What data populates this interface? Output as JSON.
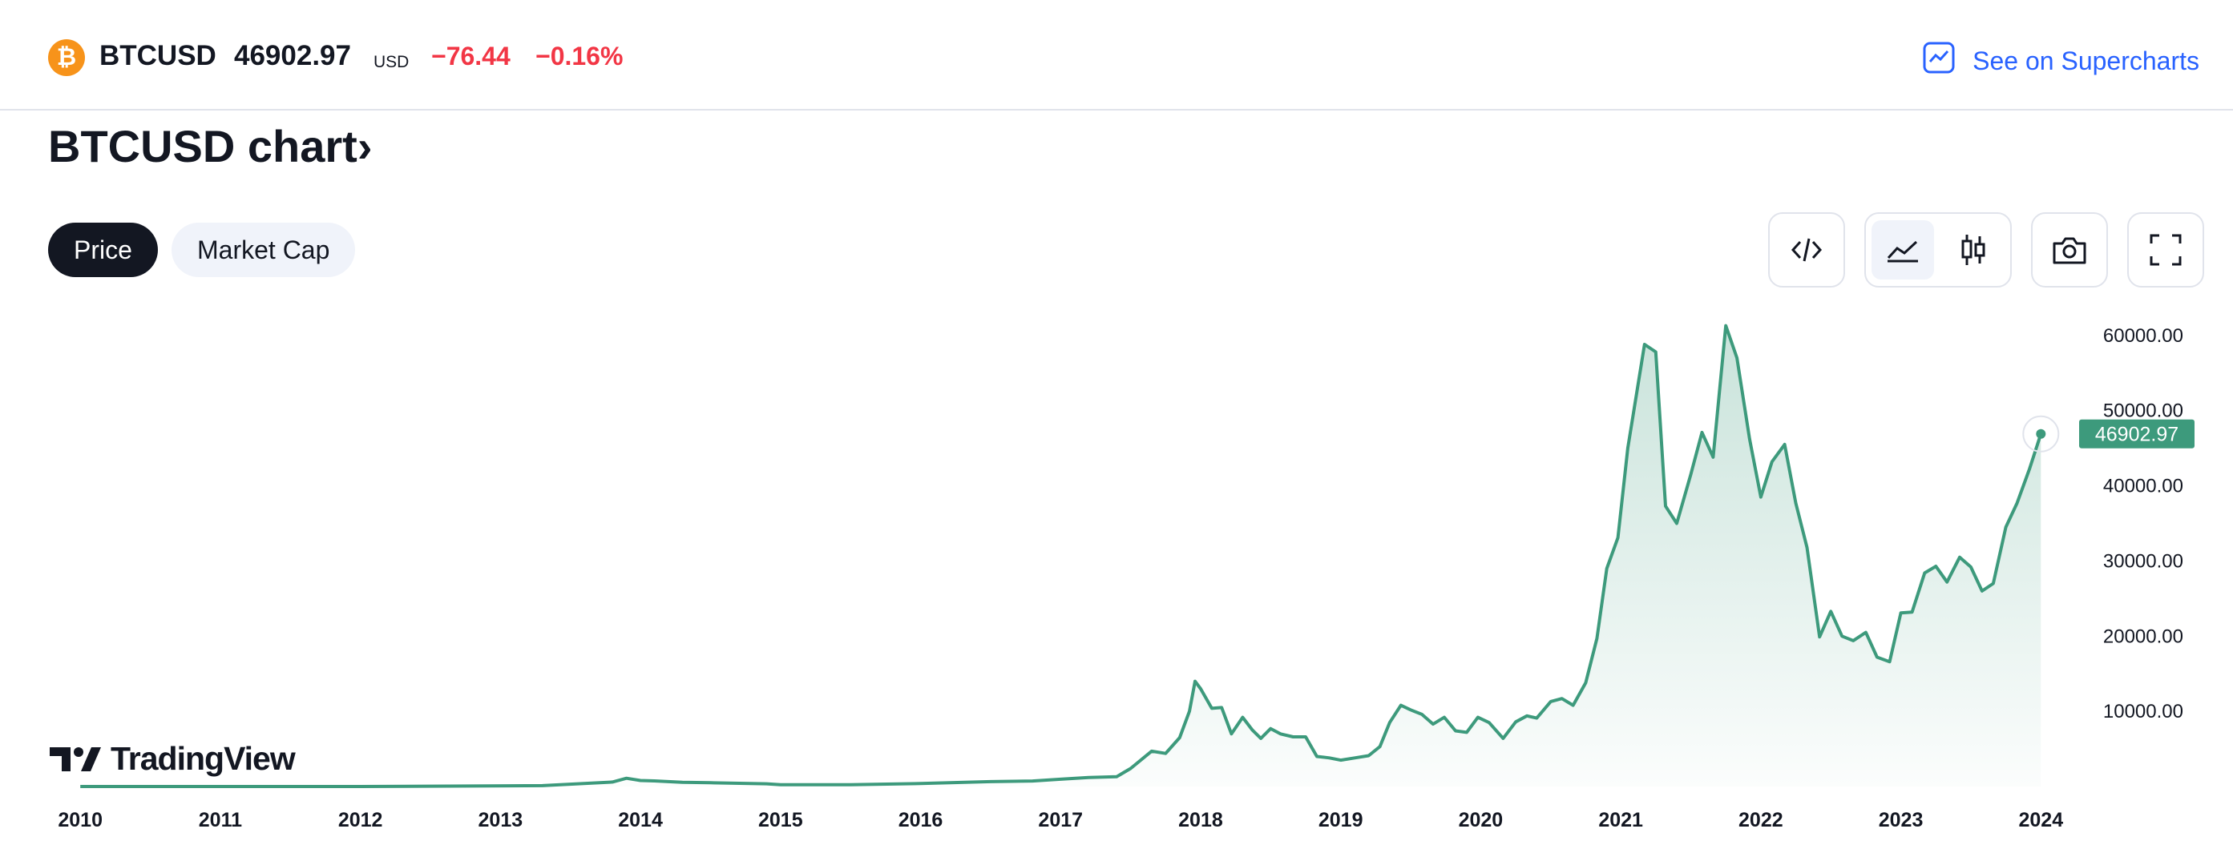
{
  "header": {
    "symbol": "BTCUSD",
    "price": "46902.97",
    "currency": "USD",
    "change": "−76.44",
    "change_pct": "−0.16%",
    "supercharts_link": "See on Supercharts",
    "coin_glyph": "₿"
  },
  "page": {
    "title": "BTCUSD chart",
    "title_chevron": "›"
  },
  "tabs": [
    {
      "label": "Price",
      "active": true
    },
    {
      "label": "Market Cap",
      "active": false
    }
  ],
  "toolbar": {
    "icons": [
      "code-embed-icon",
      "area-chart-icon",
      "candles-chart-icon",
      "camera-icon",
      "fullscreen-icon"
    ],
    "selected": "area-chart-icon"
  },
  "brand": {
    "name": "TradingView"
  },
  "colors": {
    "line": "#3d9a7c",
    "accent_blue": "#2962ff",
    "negative": "#f23645",
    "label_bg": "#3d9a7c"
  },
  "chart_data": {
    "type": "area",
    "series": [
      {
        "values": [
          [
            2010.0,
            0
          ],
          [
            2012.0,
            5
          ],
          [
            2013.3,
            120
          ],
          [
            2013.8,
            600
          ],
          [
            2013.9,
            1100
          ],
          [
            2014.0,
            800
          ],
          [
            2014.1,
            750
          ],
          [
            2014.3,
            550
          ],
          [
            2014.5,
            500
          ],
          [
            2014.9,
            360
          ],
          [
            2015.0,
            240
          ],
          [
            2015.5,
            230
          ],
          [
            2016.0,
            390
          ],
          [
            2016.5,
            650
          ],
          [
            2016.8,
            740
          ],
          [
            2017.0,
            970
          ],
          [
            2017.2,
            1200
          ],
          [
            2017.4,
            1300
          ],
          [
            2017.5,
            2400
          ],
          [
            2017.65,
            4700
          ],
          [
            2017.75,
            4400
          ],
          [
            2017.85,
            6500
          ],
          [
            2017.92,
            10000
          ],
          [
            2017.96,
            14000
          ],
          [
            2018.0,
            13000
          ],
          [
            2018.08,
            10400
          ],
          [
            2018.15,
            10500
          ],
          [
            2018.22,
            7000
          ],
          [
            2018.3,
            9200
          ],
          [
            2018.37,
            7500
          ],
          [
            2018.43,
            6400
          ],
          [
            2018.5,
            7700
          ],
          [
            2018.57,
            7000
          ],
          [
            2018.66,
            6600
          ],
          [
            2018.75,
            6600
          ],
          [
            2018.83,
            4000
          ],
          [
            2018.92,
            3800
          ],
          [
            2019.0,
            3500
          ],
          [
            2019.1,
            3800
          ],
          [
            2019.2,
            4100
          ],
          [
            2019.28,
            5300
          ],
          [
            2019.35,
            8500
          ],
          [
            2019.43,
            10800
          ],
          [
            2019.5,
            10200
          ],
          [
            2019.58,
            9600
          ],
          [
            2019.66,
            8300
          ],
          [
            2019.74,
            9200
          ],
          [
            2019.82,
            7400
          ],
          [
            2019.9,
            7200
          ],
          [
            2019.98,
            9200
          ],
          [
            2020.06,
            8500
          ],
          [
            2020.16,
            6400
          ],
          [
            2020.25,
            8600
          ],
          [
            2020.33,
            9400
          ],
          [
            2020.4,
            9100
          ],
          [
            2020.5,
            11300
          ],
          [
            2020.58,
            11700
          ],
          [
            2020.66,
            10800
          ],
          [
            2020.75,
            13800
          ],
          [
            2020.83,
            19700
          ],
          [
            2020.9,
            29000
          ],
          [
            2020.98,
            33100
          ],
          [
            2021.05,
            45000
          ],
          [
            2021.17,
            58800
          ],
          [
            2021.25,
            57800
          ],
          [
            2021.32,
            37300
          ],
          [
            2021.4,
            35000
          ],
          [
            2021.5,
            41500
          ],
          [
            2021.58,
            47100
          ],
          [
            2021.66,
            43800
          ],
          [
            2021.75,
            61300
          ],
          [
            2021.83,
            57000
          ],
          [
            2021.92,
            46200
          ],
          [
            2022.0,
            38500
          ],
          [
            2022.08,
            43200
          ],
          [
            2022.17,
            45500
          ],
          [
            2022.25,
            37700
          ],
          [
            2022.33,
            31800
          ],
          [
            2022.42,
            19900
          ],
          [
            2022.5,
            23300
          ],
          [
            2022.58,
            20000
          ],
          [
            2022.66,
            19400
          ],
          [
            2022.75,
            20500
          ],
          [
            2022.83,
            17200
          ],
          [
            2022.92,
            16600
          ],
          [
            2023.0,
            23100
          ],
          [
            2023.08,
            23200
          ],
          [
            2023.17,
            28400
          ],
          [
            2023.25,
            29300
          ],
          [
            2023.33,
            27200
          ],
          [
            2023.42,
            30500
          ],
          [
            2023.5,
            29200
          ],
          [
            2023.58,
            26000
          ],
          [
            2023.66,
            27000
          ],
          [
            2023.75,
            34500
          ],
          [
            2023.83,
            37700
          ],
          [
            2023.92,
            42300
          ],
          [
            2024.0,
            46902.97
          ]
        ]
      }
    ],
    "y_ticks": [
      "60000.00",
      "50000.00",
      "40000.00",
      "30000.00",
      "20000.00",
      "10000.00"
    ],
    "x_ticks": [
      "2010",
      "2011",
      "2012",
      "2013",
      "2014",
      "2015",
      "2016",
      "2017",
      "2018",
      "2019",
      "2020",
      "2021",
      "2022",
      "2023",
      "2024"
    ],
    "last_value_label": "46902.97",
    "xlim": [
      2009.77,
      2024.17
    ],
    "ylim": [
      0,
      62000
    ],
    "grid": false
  }
}
